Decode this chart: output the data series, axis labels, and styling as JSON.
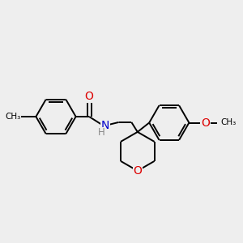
{
  "background_color": "#eeeeee",
  "bond_color": "#000000",
  "atom_colors": {
    "O": "#dd0000",
    "N": "#0000cc",
    "H": "#888888"
  },
  "figsize": [
    3.0,
    3.0
  ],
  "dpi": 100,
  "xlim": [
    0,
    10
  ],
  "ylim": [
    0,
    10
  ]
}
